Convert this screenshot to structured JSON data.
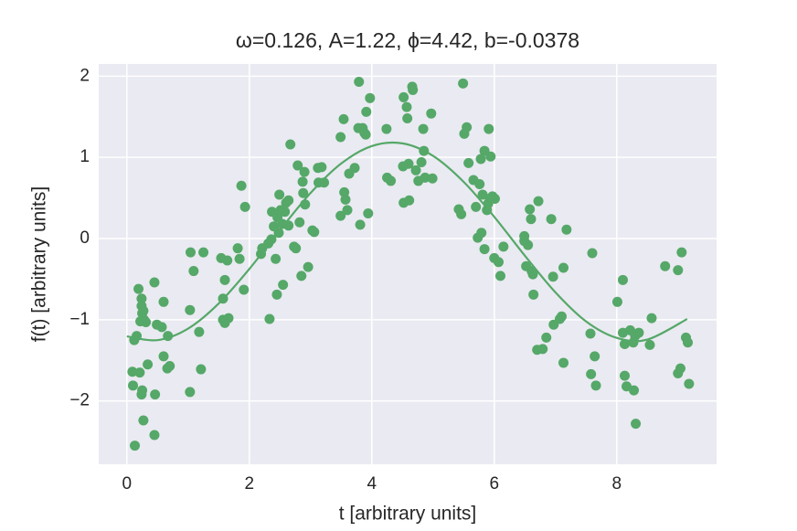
{
  "chart_data": {
    "type": "scatter",
    "title": "ω=0.126, A=1.22, ϕ=4.42, b=-0.0378",
    "xlabel": "t [arbitrary units]",
    "ylabel": "f(t) [arbitrary units]",
    "xlim": [
      -0.46,
      9.63
    ],
    "ylim": [
      -2.78,
      2.15
    ],
    "xticks": [
      0,
      2,
      4,
      6,
      8
    ],
    "yticks": [
      {
        "value": -2,
        "label": "−2"
      },
      {
        "value": -1,
        "label": "−1"
      },
      0,
      1,
      2
    ],
    "grid": true,
    "background": "#eaeaf2",
    "series": [
      {
        "type": "scatter",
        "color": "#55a868",
        "x": [
          0.09,
          0.1,
          0.12,
          0.13,
          0.16,
          0.19,
          0.21,
          0.22,
          0.24,
          0.24,
          0.25,
          0.27,
          0.25,
          0.24,
          0.27,
          0.28,
          0.31,
          0.34,
          0.45,
          0.45,
          0.46,
          0.49,
          0.57,
          0.6,
          0.6,
          0.67,
          0.66,
          0.7,
          1.03,
          1.03,
          1.04,
          1.09,
          1.18,
          1.21,
          1.25,
          1.54,
          1.57,
          1.57,
          1.6,
          1.6,
          1.64,
          1.66,
          1.81,
          1.84,
          1.87,
          1.91,
          1.93,
          2.19,
          2.21,
          2.31,
          2.33,
          2.36,
          2.37,
          2.4,
          2.43,
          2.45,
          2.46,
          2.49,
          2.48,
          2.51,
          2.54,
          2.55,
          2.58,
          2.6,
          2.64,
          2.64,
          2.67,
          2.73,
          2.76,
          2.79,
          2.82,
          2.85,
          2.87,
          2.88,
          2.9,
          2.91,
          2.96,
          3.03,
          3.06,
          3.12,
          3.13,
          3.18,
          3.22,
          3.49,
          3.49,
          3.54,
          3.55,
          3.57,
          3.6,
          3.63,
          3.72,
          3.79,
          3.78,
          3.81,
          3.85,
          3.88,
          3.9,
          3.91,
          3.94,
          3.97,
          4.24,
          4.25,
          4.31,
          4.51,
          4.52,
          4.52,
          4.57,
          4.58,
          4.6,
          4.61,
          4.66,
          4.67,
          4.72,
          4.76,
          4.81,
          4.84,
          4.85,
          4.87,
          4.97,
          4.99,
          5.42,
          5.46,
          5.49,
          5.51,
          5.55,
          5.58,
          5.66,
          5.7,
          5.73,
          5.76,
          5.78,
          5.79,
          5.81,
          5.84,
          5.84,
          5.88,
          5.9,
          5.91,
          5.93,
          5.94,
          5.97,
          6.01,
          6.0,
          6.07,
          6.1,
          6.15,
          6.49,
          6.49,
          6.52,
          6.55,
          6.58,
          6.6,
          6.61,
          6.63,
          6.64,
          6.72,
          6.7,
          6.79,
          6.85,
          6.93,
          6.96,
          6.97,
          7.07,
          7.1,
          7.13,
          7.13,
          7.18,
          7.57,
          7.58,
          7.6,
          7.64,
          7.66,
          8.01,
          8.1,
          8.1,
          8.13,
          8.13,
          8.16,
          8.22,
          8.27,
          8.28,
          8.3,
          8.31,
          8.36,
          8.54,
          8.57,
          8.79,
          9.0,
          9.0,
          9.04,
          9.06,
          9.13,
          9.16,
          9.18
        ],
        "values": [
          -1.64,
          -1.81,
          -1.25,
          -2.55,
          -1.2,
          -0.62,
          -1.65,
          -1.02,
          -0.74,
          -0.83,
          -0.92,
          -0.89,
          -1.87,
          -1.92,
          -2.24,
          -1.0,
          -1.03,
          -1.55,
          -2.42,
          -0.54,
          -1.92,
          -1.06,
          -1.09,
          -0.78,
          -1.45,
          -1.2,
          -1.6,
          -1.57,
          -1.89,
          -0.88,
          -0.17,
          -0.4,
          -1.15,
          -1.61,
          -0.17,
          -0.24,
          -0.74,
          -1.0,
          -0.51,
          -1.04,
          -0.27,
          -0.98,
          -0.12,
          -0.25,
          0.65,
          -0.63,
          0.39,
          -0.19,
          -0.12,
          -0.06,
          -0.99,
          -0.01,
          0.33,
          0.15,
          -0.25,
          -0.69,
          0.26,
          0.54,
          0.07,
          0.35,
          0.18,
          -0.57,
          0.33,
          0.44,
          0.16,
          0.47,
          1.16,
          -0.1,
          -0.12,
          0.9,
          0.2,
          -0.46,
          0.7,
          0.56,
          0.82,
          0.42,
          -0.35,
          0.1,
          0.08,
          0.87,
          0.69,
          0.88,
          0.69,
          1.25,
          0.28,
          1.47,
          0.57,
          0.48,
          0.35,
          0.8,
          0.87,
          1.93,
          1.36,
          0.17,
          1.36,
          1.3,
          1.28,
          1.56,
          0.31,
          1.73,
          1.35,
          0.75,
          0.71,
          0.89,
          1.74,
          0.44,
          1.62,
          1.48,
          0.92,
          0.47,
          1.87,
          1.83,
          0.84,
          0.71,
          0.94,
          1.35,
          1.08,
          0.75,
          1.54,
          0.74,
          0.36,
          0.3,
          1.91,
          1.29,
          1.37,
          0.93,
          0.72,
          0.39,
          0.01,
          0.67,
          0.98,
          0.07,
          0.54,
          -0.13,
          1.08,
          0.35,
          0.43,
          1.35,
          0.49,
          1.01,
          0.52,
          0.49,
          -0.24,
          -0.29,
          -0.46,
          -0.1,
          0.03,
          -0.03,
          -0.34,
          -0.08,
          0.36,
          0.24,
          -0.4,
          -0.44,
          -0.69,
          0.46,
          -1.37,
          -1.36,
          -1.22,
          0.24,
          -0.47,
          -1.06,
          -0.99,
          -0.96,
          -0.36,
          -1.53,
          0.11,
          -1.17,
          -1.67,
          -0.18,
          -1.45,
          -1.81,
          -0.78,
          -1.16,
          -0.51,
          -1.69,
          -1.3,
          -1.82,
          -1.13,
          -1.28,
          -1.87,
          -1.2,
          -2.28,
          -1.16,
          -1.31,
          -0.98,
          -0.34,
          -1.66,
          -0.39,
          -1.6,
          -0.17,
          -1.22,
          -1.28,
          -1.79
        ]
      },
      {
        "type": "line",
        "color": "#55a868",
        "x": [
          0,
          0.5,
          1,
          1.5,
          2,
          2.5,
          3,
          3.5,
          4,
          4.5,
          5,
          5.5,
          6,
          6.5,
          7,
          7.5,
          8,
          8.5,
          9.15
        ],
        "values": [
          -1.205,
          -1.251,
          -1.109,
          -0.8,
          -0.374,
          0.104,
          0.561,
          0.924,
          1.139,
          1.172,
          1.018,
          0.698,
          0.267,
          -0.212,
          -0.664,
          -1.021,
          -1.223,
          -1.244,
          -0.991
        ]
      }
    ]
  }
}
